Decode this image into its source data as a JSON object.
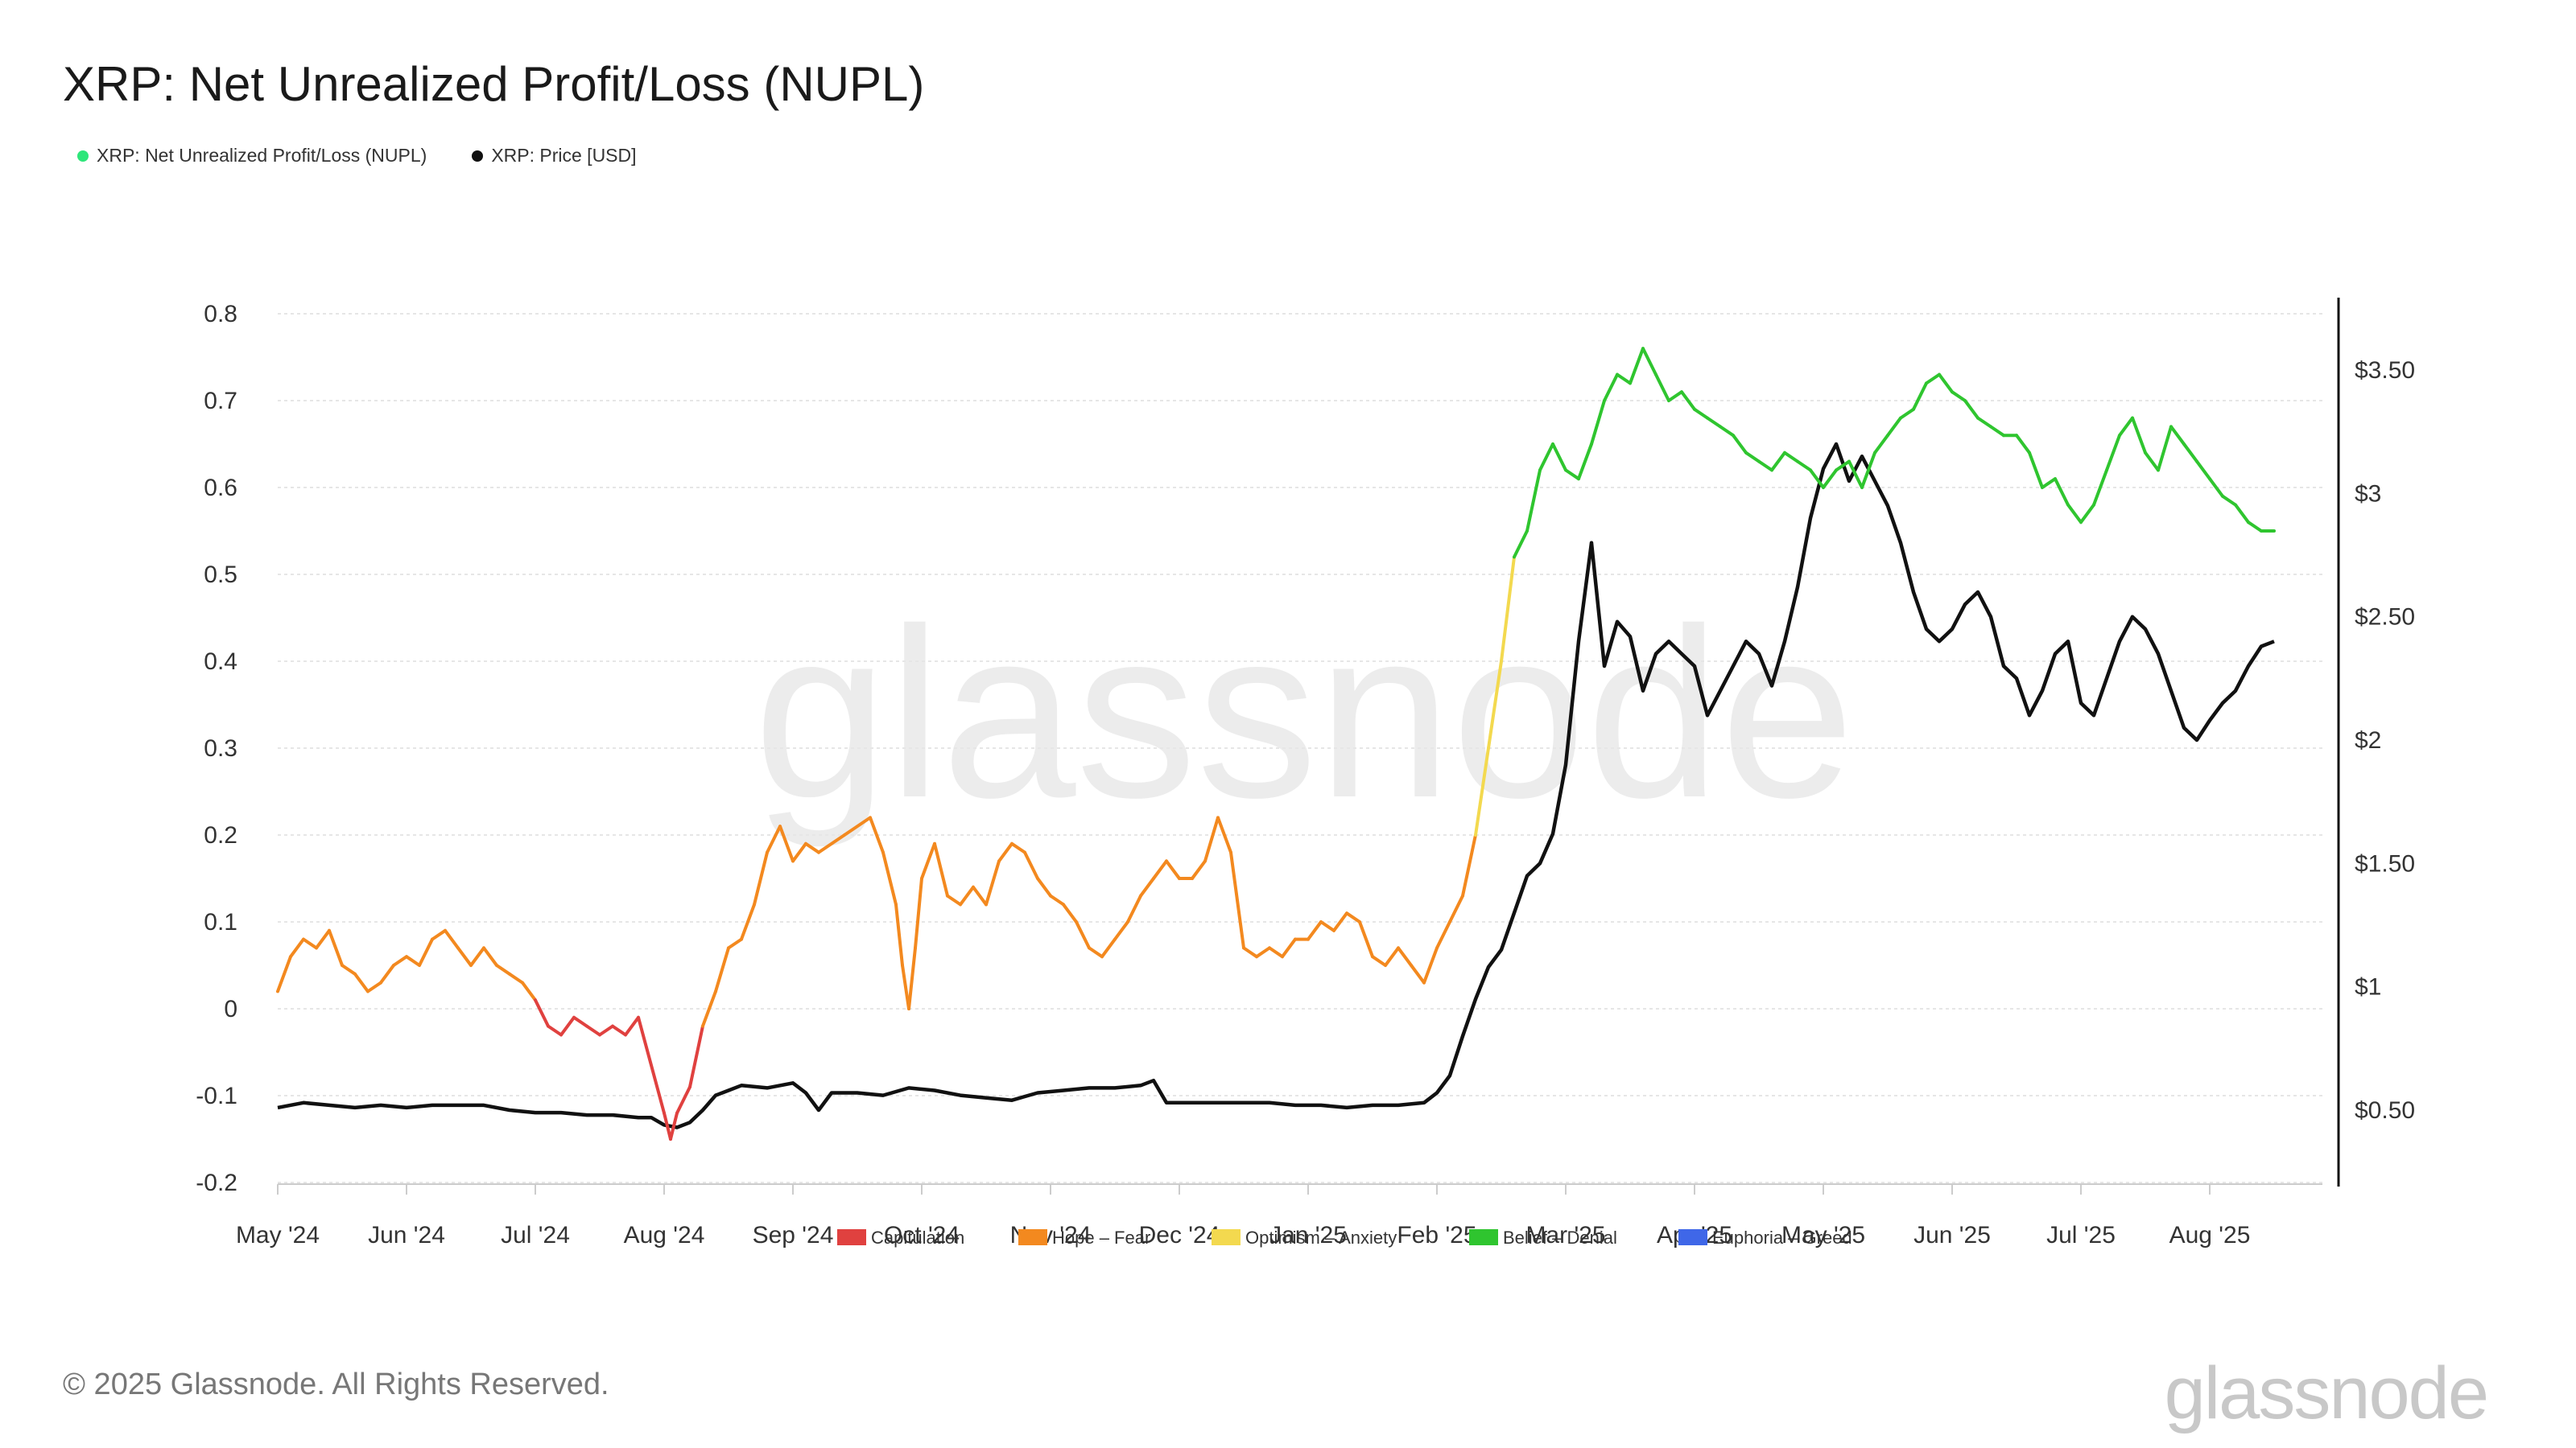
{
  "title": "XRP: Net Unrealized Profit/Loss (NUPL)",
  "legend": {
    "series": [
      {
        "name": "XRP: Net Unrealized Profit/Loss (NUPL)",
        "color": "#2ee67a"
      },
      {
        "name": "XRP: Price [USD]",
        "color": "#111111"
      }
    ],
    "categories": [
      {
        "name": "Capitulation",
        "color": "#e0413f"
      },
      {
        "name": "Hope – Fear",
        "color": "#f3891f"
      },
      {
        "name": "Optimism – Anxiety",
        "color": "#f3d94f"
      },
      {
        "name": "Belief – Denial",
        "color": "#2fc52f"
      },
      {
        "name": "Euphoria – Greed",
        "color": "#3f67e8"
      }
    ]
  },
  "watermark": "glassnode",
  "footer": "© 2025 Glassnode. All Rights Reserved.",
  "brand": "glassnode",
  "chart_data": {
    "type": "line",
    "x_ticks": [
      "May '24",
      "Jun '24",
      "Jul '24",
      "Aug '24",
      "Sep '24",
      "Oct '24",
      "Nov '24",
      "Dec '24",
      "Jan '25",
      "Feb '25",
      "Mar '25",
      "Apr '25",
      "May '25",
      "Jun '25",
      "Jul '25",
      "Aug '25"
    ],
    "y_left": {
      "ticks": [
        "0.8",
        "0.7",
        "0.6",
        "0.5",
        "0.4",
        "0.3",
        "0.2",
        "0.1",
        "0",
        "-0.1",
        "-0.2"
      ],
      "range": [
        -0.2,
        0.8
      ]
    },
    "y_right": {
      "ticks": [
        "$3.50",
        "$3",
        "$2.50",
        "$2",
        "$1.50",
        "$1",
        "$0.50"
      ],
      "range": [
        0.3,
        3.8
      ]
    },
    "zone_thresholds": {
      "capitulation_below": 0,
      "hope_fear_below": 0.25,
      "optimism_below": 0.5,
      "belief_below": 0.75
    },
    "series": [
      {
        "name": "XRP: Net Unrealized Profit/Loss (NUPL)",
        "axis": "left",
        "points": [
          [
            0.0,
            0.02
          ],
          [
            0.1,
            0.06
          ],
          [
            0.2,
            0.08
          ],
          [
            0.3,
            0.07
          ],
          [
            0.4,
            0.09
          ],
          [
            0.5,
            0.05
          ],
          [
            0.6,
            0.04
          ],
          [
            0.7,
            0.02
          ],
          [
            0.8,
            0.03
          ],
          [
            0.9,
            0.05
          ],
          [
            1.0,
            0.06
          ],
          [
            1.1,
            0.05
          ],
          [
            1.2,
            0.08
          ],
          [
            1.3,
            0.09
          ],
          [
            1.4,
            0.07
          ],
          [
            1.5,
            0.05
          ],
          [
            1.6,
            0.07
          ],
          [
            1.7,
            0.05
          ],
          [
            1.8,
            0.04
          ],
          [
            1.9,
            0.03
          ],
          [
            2.0,
            0.01
          ],
          [
            2.1,
            -0.02
          ],
          [
            2.2,
            -0.03
          ],
          [
            2.3,
            -0.01
          ],
          [
            2.4,
            -0.02
          ],
          [
            2.5,
            -0.03
          ],
          [
            2.6,
            -0.02
          ],
          [
            2.7,
            -0.03
          ],
          [
            2.8,
            -0.01
          ],
          [
            3.0,
            -0.12
          ],
          [
            3.05,
            -0.15
          ],
          [
            3.1,
            -0.12
          ],
          [
            3.2,
            -0.09
          ],
          [
            3.3,
            -0.02
          ],
          [
            3.4,
            0.02
          ],
          [
            3.5,
            0.07
          ],
          [
            3.6,
            0.08
          ],
          [
            3.7,
            0.12
          ],
          [
            3.8,
            0.18
          ],
          [
            3.9,
            0.21
          ],
          [
            4.0,
            0.17
          ],
          [
            4.1,
            0.19
          ],
          [
            4.2,
            0.18
          ],
          [
            4.4,
            0.2
          ],
          [
            4.6,
            0.22
          ],
          [
            4.7,
            0.18
          ],
          [
            4.8,
            0.12
          ],
          [
            4.85,
            0.05
          ],
          [
            4.9,
            0.0
          ],
          [
            4.95,
            0.07
          ],
          [
            5.0,
            0.15
          ],
          [
            5.1,
            0.19
          ],
          [
            5.2,
            0.13
          ],
          [
            5.3,
            0.12
          ],
          [
            5.4,
            0.14
          ],
          [
            5.5,
            0.12
          ],
          [
            5.6,
            0.17
          ],
          [
            5.7,
            0.19
          ],
          [
            5.8,
            0.18
          ],
          [
            5.9,
            0.15
          ],
          [
            6.0,
            0.13
          ],
          [
            6.1,
            0.12
          ],
          [
            6.2,
            0.1
          ],
          [
            6.3,
            0.07
          ],
          [
            6.4,
            0.06
          ],
          [
            6.5,
            0.08
          ],
          [
            6.6,
            0.1
          ],
          [
            6.7,
            0.13
          ],
          [
            6.8,
            0.15
          ],
          [
            6.9,
            0.17
          ],
          [
            7.0,
            0.15
          ],
          [
            7.1,
            0.15
          ],
          [
            7.2,
            0.17
          ],
          [
            7.3,
            0.22
          ],
          [
            7.4,
            0.18
          ],
          [
            7.5,
            0.07
          ],
          [
            7.6,
            0.06
          ],
          [
            7.7,
            0.07
          ],
          [
            7.8,
            0.06
          ],
          [
            7.9,
            0.08
          ],
          [
            8.0,
            0.08
          ],
          [
            8.1,
            0.1
          ],
          [
            8.2,
            0.09
          ],
          [
            8.3,
            0.11
          ],
          [
            8.4,
            0.1
          ],
          [
            8.5,
            0.06
          ],
          [
            8.6,
            0.05
          ],
          [
            8.7,
            0.07
          ],
          [
            8.8,
            0.05
          ],
          [
            8.9,
            0.03
          ],
          [
            9.0,
            0.07
          ],
          [
            9.1,
            0.1
          ],
          [
            9.2,
            0.13
          ],
          [
            9.3,
            0.2
          ],
          [
            9.4,
            0.3
          ],
          [
            9.5,
            0.4
          ],
          [
            9.6,
            0.52
          ],
          [
            9.7,
            0.55
          ],
          [
            9.8,
            0.62
          ],
          [
            9.9,
            0.65
          ],
          [
            10.0,
            0.62
          ],
          [
            10.1,
            0.61
          ],
          [
            10.2,
            0.65
          ],
          [
            10.3,
            0.7
          ],
          [
            10.4,
            0.73
          ],
          [
            10.5,
            0.72
          ],
          [
            10.6,
            0.76
          ],
          [
            10.7,
            0.73
          ],
          [
            10.8,
            0.7
          ],
          [
            10.9,
            0.71
          ],
          [
            11.0,
            0.69
          ],
          [
            11.1,
            0.68
          ],
          [
            11.2,
            0.67
          ],
          [
            11.3,
            0.66
          ],
          [
            11.4,
            0.64
          ],
          [
            11.5,
            0.63
          ],
          [
            11.6,
            0.62
          ],
          [
            11.7,
            0.64
          ],
          [
            11.8,
            0.63
          ],
          [
            11.9,
            0.62
          ],
          [
            12.0,
            0.6
          ],
          [
            12.1,
            0.62
          ],
          [
            12.2,
            0.63
          ],
          [
            12.3,
            0.6
          ],
          [
            12.4,
            0.64
          ],
          [
            12.5,
            0.66
          ],
          [
            12.6,
            0.68
          ],
          [
            12.7,
            0.69
          ],
          [
            12.8,
            0.72
          ],
          [
            12.9,
            0.73
          ],
          [
            13.0,
            0.71
          ],
          [
            13.1,
            0.7
          ],
          [
            13.2,
            0.68
          ],
          [
            13.3,
            0.67
          ],
          [
            13.4,
            0.66
          ],
          [
            13.5,
            0.66
          ],
          [
            13.6,
            0.64
          ],
          [
            13.7,
            0.6
          ],
          [
            13.8,
            0.61
          ],
          [
            13.9,
            0.58
          ],
          [
            14.0,
            0.56
          ],
          [
            14.1,
            0.58
          ],
          [
            14.2,
            0.62
          ],
          [
            14.3,
            0.66
          ],
          [
            14.4,
            0.68
          ],
          [
            14.5,
            0.64
          ],
          [
            14.6,
            0.62
          ],
          [
            14.7,
            0.67
          ],
          [
            14.8,
            0.65
          ],
          [
            14.9,
            0.63
          ],
          [
            15.0,
            0.61
          ],
          [
            15.1,
            0.59
          ],
          [
            15.2,
            0.58
          ],
          [
            15.3,
            0.56
          ],
          [
            15.4,
            0.55
          ],
          [
            15.5,
            0.55
          ]
        ]
      },
      {
        "name": "XRP: Price [USD]",
        "axis": "right",
        "points": [
          [
            0.0,
            0.51
          ],
          [
            0.2,
            0.53
          ],
          [
            0.4,
            0.52
          ],
          [
            0.6,
            0.51
          ],
          [
            0.8,
            0.52
          ],
          [
            1.0,
            0.51
          ],
          [
            1.2,
            0.52
          ],
          [
            1.4,
            0.52
          ],
          [
            1.6,
            0.52
          ],
          [
            1.8,
            0.5
          ],
          [
            2.0,
            0.49
          ],
          [
            2.2,
            0.49
          ],
          [
            2.4,
            0.48
          ],
          [
            2.6,
            0.48
          ],
          [
            2.8,
            0.47
          ],
          [
            2.9,
            0.47
          ],
          [
            3.0,
            0.44
          ],
          [
            3.1,
            0.43
          ],
          [
            3.2,
            0.45
          ],
          [
            3.3,
            0.5
          ],
          [
            3.4,
            0.56
          ],
          [
            3.5,
            0.58
          ],
          [
            3.6,
            0.6
          ],
          [
            3.8,
            0.59
          ],
          [
            4.0,
            0.61
          ],
          [
            4.1,
            0.57
          ],
          [
            4.2,
            0.5
          ],
          [
            4.3,
            0.57
          ],
          [
            4.5,
            0.57
          ],
          [
            4.7,
            0.56
          ],
          [
            4.9,
            0.59
          ],
          [
            5.1,
            0.58
          ],
          [
            5.3,
            0.56
          ],
          [
            5.5,
            0.55
          ],
          [
            5.7,
            0.54
          ],
          [
            5.9,
            0.57
          ],
          [
            6.1,
            0.58
          ],
          [
            6.3,
            0.59
          ],
          [
            6.5,
            0.59
          ],
          [
            6.7,
            0.6
          ],
          [
            6.8,
            0.62
          ],
          [
            6.9,
            0.53
          ],
          [
            7.1,
            0.53
          ],
          [
            7.3,
            0.53
          ],
          [
            7.5,
            0.53
          ],
          [
            7.7,
            0.53
          ],
          [
            7.9,
            0.52
          ],
          [
            8.1,
            0.52
          ],
          [
            8.3,
            0.51
          ],
          [
            8.5,
            0.52
          ],
          [
            8.7,
            0.52
          ],
          [
            8.9,
            0.53
          ],
          [
            9.0,
            0.57
          ],
          [
            9.1,
            0.64
          ],
          [
            9.2,
            0.8
          ],
          [
            9.3,
            0.95
          ],
          [
            9.4,
            1.08
          ],
          [
            9.5,
            1.15
          ],
          [
            9.6,
            1.3
          ],
          [
            9.7,
            1.45
          ],
          [
            9.8,
            1.5
          ],
          [
            9.9,
            1.62
          ],
          [
            10.0,
            1.9
          ],
          [
            10.1,
            2.4
          ],
          [
            10.2,
            2.8
          ],
          [
            10.3,
            2.3
          ],
          [
            10.4,
            2.48
          ],
          [
            10.5,
            2.42
          ],
          [
            10.6,
            2.2
          ],
          [
            10.7,
            2.35
          ],
          [
            10.8,
            2.4
          ],
          [
            10.9,
            2.35
          ],
          [
            11.0,
            2.3
          ],
          [
            11.1,
            2.1
          ],
          [
            11.2,
            2.2
          ],
          [
            11.3,
            2.3
          ],
          [
            11.4,
            2.4
          ],
          [
            11.5,
            2.35
          ],
          [
            11.6,
            2.22
          ],
          [
            11.7,
            2.4
          ],
          [
            11.8,
            2.62
          ],
          [
            11.9,
            2.9
          ],
          [
            12.0,
            3.1
          ],
          [
            12.1,
            3.2
          ],
          [
            12.2,
            3.05
          ],
          [
            12.3,
            3.15
          ],
          [
            12.4,
            3.05
          ],
          [
            12.5,
            2.95
          ],
          [
            12.6,
            2.8
          ],
          [
            12.7,
            2.6
          ],
          [
            12.8,
            2.45
          ],
          [
            12.9,
            2.4
          ],
          [
            13.0,
            2.45
          ],
          [
            13.1,
            2.55
          ],
          [
            13.2,
            2.6
          ],
          [
            13.3,
            2.5
          ],
          [
            13.4,
            2.3
          ],
          [
            13.5,
            2.25
          ],
          [
            13.6,
            2.1
          ],
          [
            13.7,
            2.2
          ],
          [
            13.8,
            2.35
          ],
          [
            13.9,
            2.4
          ],
          [
            14.0,
            2.15
          ],
          [
            14.1,
            2.1
          ],
          [
            14.2,
            2.25
          ],
          [
            14.3,
            2.4
          ],
          [
            14.4,
            2.5
          ],
          [
            14.5,
            2.45
          ],
          [
            14.6,
            2.35
          ],
          [
            14.7,
            2.2
          ],
          [
            14.8,
            2.05
          ],
          [
            14.9,
            2.0
          ],
          [
            15.0,
            2.08
          ],
          [
            15.1,
            2.15
          ],
          [
            15.2,
            2.2
          ],
          [
            15.3,
            2.3
          ],
          [
            15.4,
            2.38
          ],
          [
            15.5,
            2.4
          ]
        ]
      }
    ]
  }
}
